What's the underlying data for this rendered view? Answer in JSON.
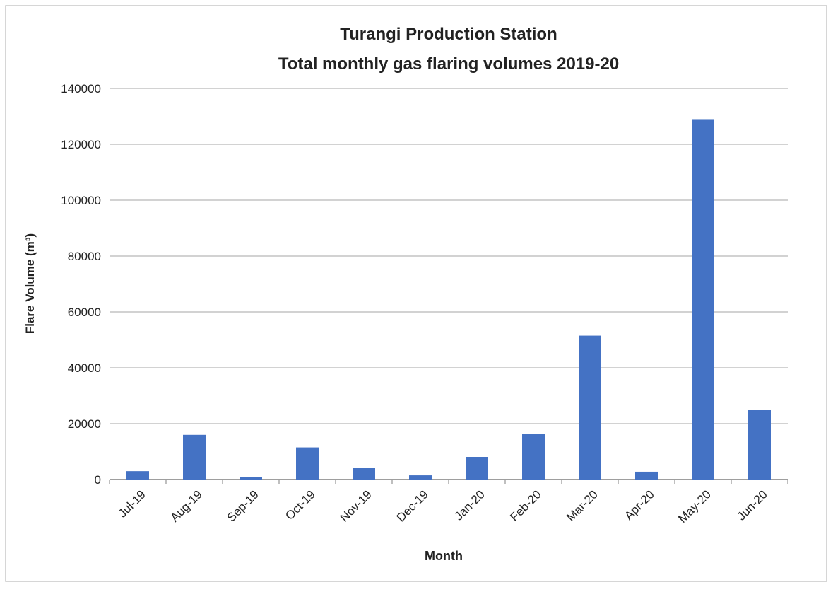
{
  "chart_data": {
    "type": "bar",
    "title": [
      "Turangi Production Station",
      "Total monthly gas flaring volumes 2019-20"
    ],
    "x_label": "Month",
    "y_label": "Flare Volume (m³)",
    "categories": [
      "Jul-19",
      "Aug-19",
      "Sep-19",
      "Oct-19",
      "Nov-19",
      "Dec-19",
      "Jan-20",
      "Feb-20",
      "Mar-20",
      "Apr-20",
      "May-20",
      "Jun-20"
    ],
    "values": [
      3000,
      16000,
      1000,
      11500,
      4300,
      1500,
      8100,
      16200,
      51500,
      2800,
      129000,
      25000
    ],
    "color": "#4472c4",
    "ylim": [
      0,
      140000
    ],
    "yticks": [
      0,
      20000,
      40000,
      60000,
      80000,
      100000,
      120000,
      140000
    ],
    "grid": true
  }
}
